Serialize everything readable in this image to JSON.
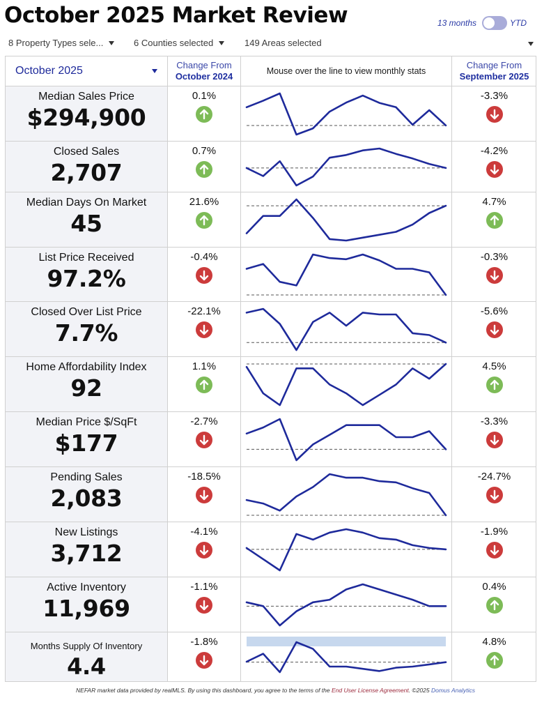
{
  "title": "October 2025 Market Review",
  "toggle": {
    "left_label": "13 months",
    "right_label": "YTD"
  },
  "filters": {
    "property_types": "8 Property Types sele...",
    "counties": "6 Counties selected",
    "areas": "149 Areas selected"
  },
  "header": {
    "period": "October 2025",
    "change_from_label": "Change From",
    "prior_year": "October 2024",
    "chart_hint": "Mouse over the line to view monthly stats",
    "prior_month": "September 2025"
  },
  "metrics": [
    {
      "label": "Median Sales Price",
      "value": "$294,900",
      "yoy": "0.1%",
      "yoy_dir": "up",
      "mom": "-3.3%",
      "mom_dir": "down",
      "trend": [
        0.5,
        0.68,
        0.88,
        -0.25,
        -0.08,
        0.38,
        0.63,
        0.82,
        0.62,
        0.5,
        0.02,
        0.42,
        0.0
      ],
      "baseline": 0.0
    },
    {
      "label": "Closed Sales",
      "value": "2,707",
      "yoy": "0.7%",
      "yoy_dir": "up",
      "mom": "-4.2%",
      "mom_dir": "down",
      "trend": [
        0.0,
        -0.3,
        0.25,
        -0.65,
        -0.32,
        0.38,
        0.48,
        0.65,
        0.72,
        0.52,
        0.35,
        0.15,
        0.0
      ],
      "baseline": 0.0
    },
    {
      "label": "Median Days On Market",
      "value": "45",
      "yoy": "21.6%",
      "yoy_dir": "up",
      "mom": "4.7%",
      "mom_dir": "up",
      "trend": [
        -0.95,
        -0.35,
        -0.35,
        0.22,
        -0.42,
        -1.15,
        -1.2,
        -1.1,
        -1.0,
        -0.9,
        -0.65,
        -0.25,
        0.0
      ],
      "baseline": 0.0
    },
    {
      "label": "List Price Received",
      "value": "97.2%",
      "yoy": "-0.4%",
      "yoy_dir": "down",
      "mom": "-0.3%",
      "mom_dir": "down",
      "trend": [
        1.1,
        1.3,
        0.55,
        0.4,
        1.7,
        1.55,
        1.5,
        1.7,
        1.45,
        1.1,
        1.1,
        0.95,
        0.0
      ],
      "baseline": 0.0
    },
    {
      "label": "Closed Over List Price",
      "value": "7.7%",
      "yoy": "-22.1%",
      "yoy_dir": "down",
      "mom": "-5.6%",
      "mom_dir": "down",
      "trend": [
        0.8,
        0.9,
        0.5,
        -0.2,
        0.55,
        0.8,
        0.45,
        0.8,
        0.75,
        0.75,
        0.25,
        0.2,
        0.0
      ],
      "baseline": 0.0
    },
    {
      "label": "Home Affordability Index",
      "value": "92",
      "yoy": "1.1%",
      "yoy_dir": "up",
      "mom": "4.5%",
      "mom_dir": "up",
      "trend": [
        -0.1,
        -1.0,
        -1.4,
        -0.15,
        -0.15,
        -0.7,
        -1.0,
        -1.4,
        -1.05,
        -0.7,
        -0.15,
        -0.5,
        0.0
      ],
      "baseline": 0.0
    },
    {
      "label": "Median Price $/SqFt",
      "value": "$177",
      "yoy": "-2.7%",
      "yoy_dir": "down",
      "mom": "-3.3%",
      "mom_dir": "down",
      "trend": [
        0.65,
        0.9,
        1.25,
        -0.45,
        0.2,
        0.6,
        1.0,
        1.0,
        1.0,
        0.5,
        0.5,
        0.75,
        0.0
      ],
      "baseline": 0.0
    },
    {
      "label": "Pending Sales",
      "value": "2,083",
      "yoy": "-18.5%",
      "yoy_dir": "down",
      "mom": "-24.7%",
      "mom_dir": "down",
      "trend": [
        0.65,
        0.5,
        0.2,
        0.8,
        1.2,
        1.75,
        1.6,
        1.6,
        1.45,
        1.4,
        1.15,
        0.95,
        0.0
      ],
      "baseline": 0.0
    },
    {
      "label": "New Listings",
      "value": "3,712",
      "yoy": "-4.1%",
      "yoy_dir": "down",
      "mom": "-1.9%",
      "mom_dir": "down",
      "trend": [
        0.05,
        -0.35,
        -0.75,
        0.55,
        0.35,
        0.6,
        0.72,
        0.6,
        0.4,
        0.35,
        0.15,
        0.05,
        0.0
      ],
      "baseline": 0.0
    },
    {
      "label": "Active Inventory",
      "value": "11,969",
      "yoy": "-1.1%",
      "yoy_dir": "down",
      "mom": "0.4%",
      "mom_dir": "up",
      "trend": [
        0.15,
        0.0,
        -0.75,
        -0.2,
        0.15,
        0.25,
        0.65,
        0.85,
        0.65,
        0.45,
        0.25,
        0.0,
        0.0
      ],
      "baseline": 0.0
    },
    {
      "label": "Months Supply Of Inventory",
      "value": "4.4",
      "yoy": "-1.8%",
      "yoy_dir": "down",
      "mom": "4.8%",
      "mom_dir": "up",
      "trend": [
        0.02,
        0.38,
        -0.45,
        0.9,
        0.6,
        -0.2,
        -0.2,
        -0.3,
        -0.4,
        -0.25,
        -0.2,
        -0.1,
        0.0
      ],
      "baseline": 0.0
    }
  ],
  "footer": {
    "text1": "NEFAR market data provided by realMLS.  By using this dashboard, you agree to the terms of the ",
    "link_eula": "End User License Agreement",
    "text2": ".  ©2025 ",
    "link_domus": "Domus Analytics"
  },
  "colors": {
    "line": "#1e2a9b",
    "up": "#7dbb57",
    "down": "#cc3b3b",
    "band": "#c7d8ee"
  }
}
